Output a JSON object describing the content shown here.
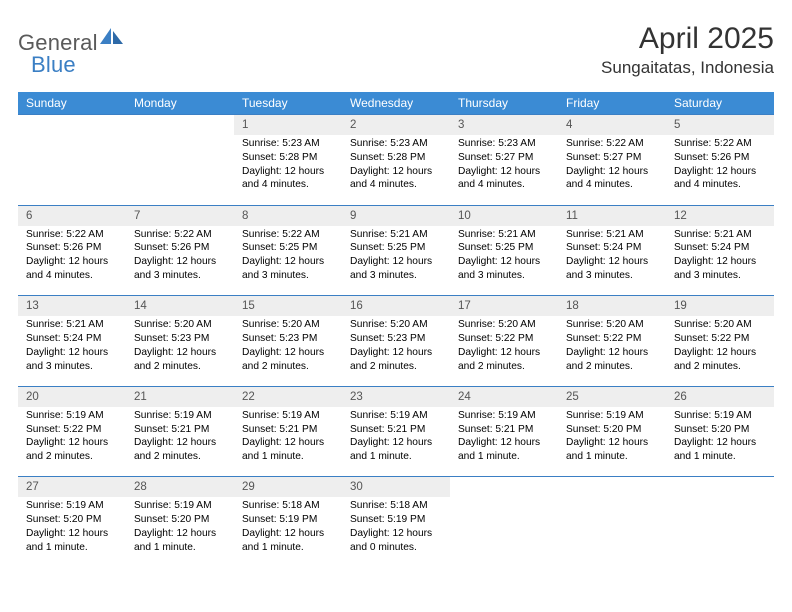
{
  "logo": {
    "part1": "General",
    "part2": "Blue"
  },
  "title": "April 2025",
  "location": "Sungaitatas, Indonesia",
  "colors": {
    "header_bg": "#3b8bd4",
    "header_text": "#ffffff",
    "daynum_bg": "#eeeeee",
    "daynum_border": "#3b7fc4",
    "daynum_text": "#555555",
    "body_text": "#000000",
    "logo_gray": "#5a5a5a",
    "logo_blue": "#3b7fc4",
    "background": "#ffffff"
  },
  "daysOfWeek": [
    "Sunday",
    "Monday",
    "Tuesday",
    "Wednesday",
    "Thursday",
    "Friday",
    "Saturday"
  ],
  "weeks": [
    [
      null,
      null,
      {
        "n": "1",
        "sr": "5:23 AM",
        "ss": "5:28 PM",
        "dl": "12 hours and 4 minutes."
      },
      {
        "n": "2",
        "sr": "5:23 AM",
        "ss": "5:28 PM",
        "dl": "12 hours and 4 minutes."
      },
      {
        "n": "3",
        "sr": "5:23 AM",
        "ss": "5:27 PM",
        "dl": "12 hours and 4 minutes."
      },
      {
        "n": "4",
        "sr": "5:22 AM",
        "ss": "5:27 PM",
        "dl": "12 hours and 4 minutes."
      },
      {
        "n": "5",
        "sr": "5:22 AM",
        "ss": "5:26 PM",
        "dl": "12 hours and 4 minutes."
      }
    ],
    [
      {
        "n": "6",
        "sr": "5:22 AM",
        "ss": "5:26 PM",
        "dl": "12 hours and 4 minutes."
      },
      {
        "n": "7",
        "sr": "5:22 AM",
        "ss": "5:26 PM",
        "dl": "12 hours and 3 minutes."
      },
      {
        "n": "8",
        "sr": "5:22 AM",
        "ss": "5:25 PM",
        "dl": "12 hours and 3 minutes."
      },
      {
        "n": "9",
        "sr": "5:21 AM",
        "ss": "5:25 PM",
        "dl": "12 hours and 3 minutes."
      },
      {
        "n": "10",
        "sr": "5:21 AM",
        "ss": "5:25 PM",
        "dl": "12 hours and 3 minutes."
      },
      {
        "n": "11",
        "sr": "5:21 AM",
        "ss": "5:24 PM",
        "dl": "12 hours and 3 minutes."
      },
      {
        "n": "12",
        "sr": "5:21 AM",
        "ss": "5:24 PM",
        "dl": "12 hours and 3 minutes."
      }
    ],
    [
      {
        "n": "13",
        "sr": "5:21 AM",
        "ss": "5:24 PM",
        "dl": "12 hours and 3 minutes."
      },
      {
        "n": "14",
        "sr": "5:20 AM",
        "ss": "5:23 PM",
        "dl": "12 hours and 2 minutes."
      },
      {
        "n": "15",
        "sr": "5:20 AM",
        "ss": "5:23 PM",
        "dl": "12 hours and 2 minutes."
      },
      {
        "n": "16",
        "sr": "5:20 AM",
        "ss": "5:23 PM",
        "dl": "12 hours and 2 minutes."
      },
      {
        "n": "17",
        "sr": "5:20 AM",
        "ss": "5:22 PM",
        "dl": "12 hours and 2 minutes."
      },
      {
        "n": "18",
        "sr": "5:20 AM",
        "ss": "5:22 PM",
        "dl": "12 hours and 2 minutes."
      },
      {
        "n": "19",
        "sr": "5:20 AM",
        "ss": "5:22 PM",
        "dl": "12 hours and 2 minutes."
      }
    ],
    [
      {
        "n": "20",
        "sr": "5:19 AM",
        "ss": "5:22 PM",
        "dl": "12 hours and 2 minutes."
      },
      {
        "n": "21",
        "sr": "5:19 AM",
        "ss": "5:21 PM",
        "dl": "12 hours and 2 minutes."
      },
      {
        "n": "22",
        "sr": "5:19 AM",
        "ss": "5:21 PM",
        "dl": "12 hours and 1 minute."
      },
      {
        "n": "23",
        "sr": "5:19 AM",
        "ss": "5:21 PM",
        "dl": "12 hours and 1 minute."
      },
      {
        "n": "24",
        "sr": "5:19 AM",
        "ss": "5:21 PM",
        "dl": "12 hours and 1 minute."
      },
      {
        "n": "25",
        "sr": "5:19 AM",
        "ss": "5:20 PM",
        "dl": "12 hours and 1 minute."
      },
      {
        "n": "26",
        "sr": "5:19 AM",
        "ss": "5:20 PM",
        "dl": "12 hours and 1 minute."
      }
    ],
    [
      {
        "n": "27",
        "sr": "5:19 AM",
        "ss": "5:20 PM",
        "dl": "12 hours and 1 minute."
      },
      {
        "n": "28",
        "sr": "5:19 AM",
        "ss": "5:20 PM",
        "dl": "12 hours and 1 minute."
      },
      {
        "n": "29",
        "sr": "5:18 AM",
        "ss": "5:19 PM",
        "dl": "12 hours and 1 minute."
      },
      {
        "n": "30",
        "sr": "5:18 AM",
        "ss": "5:19 PM",
        "dl": "12 hours and 0 minutes."
      },
      null,
      null,
      null
    ]
  ],
  "labels": {
    "sunrise": "Sunrise: ",
    "sunset": "Sunset: ",
    "daylight": "Daylight: "
  }
}
